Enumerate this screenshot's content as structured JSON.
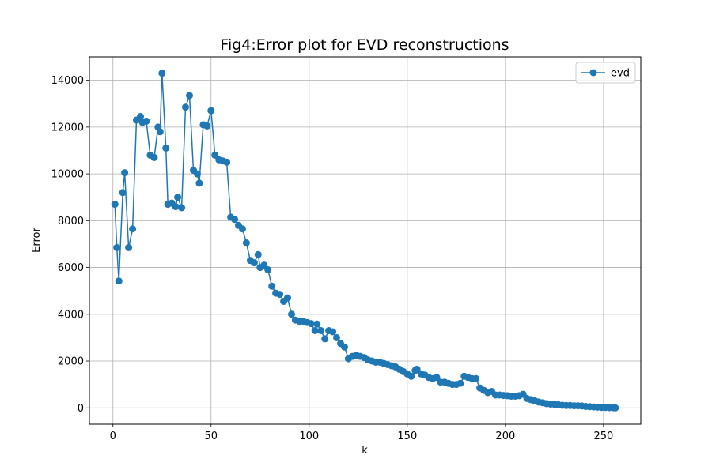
{
  "chart_data": {
    "type": "line",
    "title": "Fig4:Error plot for EVD reconstructions",
    "xlabel": "k",
    "ylabel": "Error",
    "xlim": [
      -12,
      269
    ],
    "ylim": [
      -700,
      15000
    ],
    "xticks": [
      0,
      50,
      100,
      150,
      200,
      250
    ],
    "yticks": [
      0,
      2000,
      4000,
      6000,
      8000,
      10000,
      12000,
      14000
    ],
    "grid": true,
    "legend": "top-right",
    "series": [
      {
        "name": "evd",
        "color": "#1f77b4",
        "marker": "circle",
        "x": [
          1,
          2,
          3,
          5,
          6,
          8,
          10,
          12,
          14,
          15,
          17,
          19,
          21,
          23,
          24,
          25,
          27,
          28,
          30,
          32,
          33,
          35,
          37,
          39,
          41,
          43,
          44,
          46,
          48,
          50,
          52,
          54,
          56,
          58,
          60,
          62,
          64,
          66,
          68,
          70,
          72,
          74,
          75,
          77,
          79,
          81,
          83,
          85,
          87,
          89,
          91,
          93,
          95,
          97,
          99,
          101,
          103,
          104,
          106,
          108,
          110,
          112,
          114,
          116,
          118,
          120,
          122,
          124,
          126,
          128,
          130,
          132,
          134,
          136,
          138,
          140,
          142,
          144,
          146,
          148,
          150,
          152,
          154,
          155,
          157,
          159,
          161,
          163,
          165,
          167,
          169,
          171,
          173,
          175,
          177,
          179,
          181,
          183,
          185,
          187,
          189,
          191,
          193,
          195,
          197,
          199,
          201,
          203,
          205,
          207,
          209,
          211,
          213,
          215,
          217,
          219,
          221,
          223,
          225,
          227,
          229,
          231,
          233,
          235,
          237,
          239,
          241,
          243,
          245,
          247,
          249,
          251,
          253,
          255,
          256
        ],
        "values": [
          8700,
          6850,
          5420,
          9200,
          10050,
          6850,
          7650,
          12300,
          12450,
          12200,
          12250,
          10800,
          10700,
          12000,
          11800,
          14300,
          11100,
          8700,
          8750,
          8600,
          9000,
          8550,
          12850,
          13350,
          10150,
          10000,
          9600,
          12100,
          12050,
          12700,
          10800,
          10600,
          10550,
          10500,
          8150,
          8050,
          7800,
          7650,
          7050,
          6300,
          6200,
          6550,
          6000,
          6100,
          5900,
          5200,
          4900,
          4850,
          4550,
          4700,
          4000,
          3750,
          3700,
          3700,
          3650,
          3600,
          3300,
          3580,
          3300,
          2950,
          3300,
          3250,
          3000,
          2750,
          2600,
          2100,
          2200,
          2250,
          2200,
          2150,
          2050,
          2000,
          1950,
          1950,
          1900,
          1850,
          1800,
          1750,
          1650,
          1550,
          1450,
          1350,
          1600,
          1650,
          1450,
          1400,
          1300,
          1250,
          1300,
          1100,
          1100,
          1050,
          1000,
          1000,
          1050,
          1350,
          1300,
          1250,
          1250,
          850,
          750,
          650,
          700,
          550,
          550,
          530,
          520,
          500,
          500,
          520,
          580,
          400,
          350,
          300,
          250,
          220,
          180,
          160,
          150,
          130,
          110,
          100,
          100,
          90,
          90,
          80,
          60,
          50,
          40,
          30,
          20,
          15,
          10,
          5,
          0
        ]
      }
    ]
  }
}
